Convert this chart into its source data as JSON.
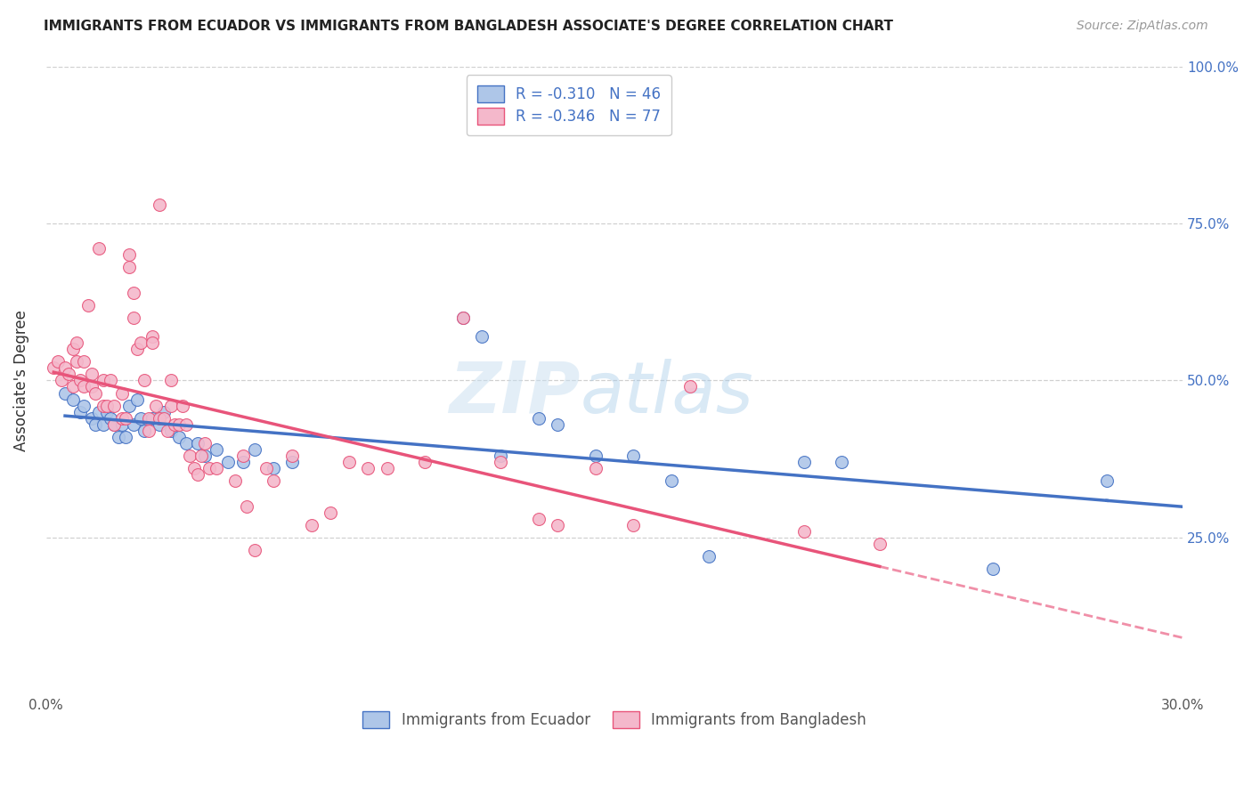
{
  "title": "IMMIGRANTS FROM ECUADOR VS IMMIGRANTS FROM BANGLADESH ASSOCIATE'S DEGREE CORRELATION CHART",
  "source": "Source: ZipAtlas.com",
  "ylabel": "Associate's Degree",
  "legend_ecuador": "R = -0.310   N = 46",
  "legend_bangladesh": "R = -0.346   N = 77",
  "watermark_zip": "ZIP",
  "watermark_atlas": "atlas",
  "ecuador_color": "#aec6e8",
  "ecuador_line_color": "#4472c4",
  "ecuador_edge_color": "#4472c4",
  "bangladesh_color": "#f4b8cb",
  "bangladesh_line_color": "#e8547a",
  "bangladesh_edge_color": "#e8547a",
  "ecuador_scatter": [
    [
      0.005,
      0.48
    ],
    [
      0.007,
      0.47
    ],
    [
      0.009,
      0.45
    ],
    [
      0.01,
      0.46
    ],
    [
      0.012,
      0.44
    ],
    [
      0.013,
      0.43
    ],
    [
      0.014,
      0.45
    ],
    [
      0.015,
      0.43
    ],
    [
      0.016,
      0.45
    ],
    [
      0.017,
      0.44
    ],
    [
      0.018,
      0.43
    ],
    [
      0.019,
      0.41
    ],
    [
      0.02,
      0.43
    ],
    [
      0.021,
      0.41
    ],
    [
      0.022,
      0.46
    ],
    [
      0.023,
      0.43
    ],
    [
      0.024,
      0.47
    ],
    [
      0.025,
      0.44
    ],
    [
      0.026,
      0.42
    ],
    [
      0.028,
      0.44
    ],
    [
      0.03,
      0.43
    ],
    [
      0.031,
      0.45
    ],
    [
      0.033,
      0.42
    ],
    [
      0.035,
      0.41
    ],
    [
      0.037,
      0.4
    ],
    [
      0.04,
      0.4
    ],
    [
      0.042,
      0.38
    ],
    [
      0.045,
      0.39
    ],
    [
      0.048,
      0.37
    ],
    [
      0.052,
      0.37
    ],
    [
      0.055,
      0.39
    ],
    [
      0.06,
      0.36
    ],
    [
      0.065,
      0.37
    ],
    [
      0.11,
      0.6
    ],
    [
      0.115,
      0.57
    ],
    [
      0.12,
      0.38
    ],
    [
      0.13,
      0.44
    ],
    [
      0.135,
      0.43
    ],
    [
      0.145,
      0.38
    ],
    [
      0.155,
      0.38
    ],
    [
      0.165,
      0.34
    ],
    [
      0.175,
      0.22
    ],
    [
      0.2,
      0.37
    ],
    [
      0.21,
      0.37
    ],
    [
      0.25,
      0.2
    ],
    [
      0.28,
      0.34
    ]
  ],
  "bangladesh_scatter": [
    [
      0.002,
      0.52
    ],
    [
      0.003,
      0.53
    ],
    [
      0.004,
      0.5
    ],
    [
      0.005,
      0.52
    ],
    [
      0.006,
      0.51
    ],
    [
      0.007,
      0.55
    ],
    [
      0.007,
      0.49
    ],
    [
      0.008,
      0.56
    ],
    [
      0.008,
      0.53
    ],
    [
      0.009,
      0.5
    ],
    [
      0.01,
      0.49
    ],
    [
      0.01,
      0.53
    ],
    [
      0.011,
      0.62
    ],
    [
      0.012,
      0.49
    ],
    [
      0.012,
      0.51
    ],
    [
      0.013,
      0.48
    ],
    [
      0.014,
      0.71
    ],
    [
      0.015,
      0.5
    ],
    [
      0.015,
      0.46
    ],
    [
      0.016,
      0.46
    ],
    [
      0.017,
      0.5
    ],
    [
      0.018,
      0.46
    ],
    [
      0.018,
      0.43
    ],
    [
      0.02,
      0.48
    ],
    [
      0.02,
      0.44
    ],
    [
      0.021,
      0.44
    ],
    [
      0.022,
      0.7
    ],
    [
      0.022,
      0.68
    ],
    [
      0.023,
      0.64
    ],
    [
      0.023,
      0.6
    ],
    [
      0.024,
      0.55
    ],
    [
      0.025,
      0.56
    ],
    [
      0.026,
      0.5
    ],
    [
      0.027,
      0.44
    ],
    [
      0.027,
      0.42
    ],
    [
      0.028,
      0.57
    ],
    [
      0.028,
      0.56
    ],
    [
      0.029,
      0.46
    ],
    [
      0.03,
      0.78
    ],
    [
      0.03,
      0.44
    ],
    [
      0.031,
      0.44
    ],
    [
      0.032,
      0.42
    ],
    [
      0.033,
      0.5
    ],
    [
      0.033,
      0.46
    ],
    [
      0.034,
      0.43
    ],
    [
      0.035,
      0.43
    ],
    [
      0.036,
      0.46
    ],
    [
      0.037,
      0.43
    ],
    [
      0.038,
      0.38
    ],
    [
      0.039,
      0.36
    ],
    [
      0.04,
      0.35
    ],
    [
      0.041,
      0.38
    ],
    [
      0.042,
      0.4
    ],
    [
      0.043,
      0.36
    ],
    [
      0.045,
      0.36
    ],
    [
      0.05,
      0.34
    ],
    [
      0.052,
      0.38
    ],
    [
      0.053,
      0.3
    ],
    [
      0.055,
      0.23
    ],
    [
      0.058,
      0.36
    ],
    [
      0.06,
      0.34
    ],
    [
      0.065,
      0.38
    ],
    [
      0.07,
      0.27
    ],
    [
      0.075,
      0.29
    ],
    [
      0.08,
      0.37
    ],
    [
      0.085,
      0.36
    ],
    [
      0.09,
      0.36
    ],
    [
      0.1,
      0.37
    ],
    [
      0.11,
      0.6
    ],
    [
      0.12,
      0.37
    ],
    [
      0.13,
      0.28
    ],
    [
      0.135,
      0.27
    ],
    [
      0.145,
      0.36
    ],
    [
      0.155,
      0.27
    ],
    [
      0.17,
      0.49
    ],
    [
      0.2,
      0.26
    ],
    [
      0.22,
      0.24
    ]
  ],
  "xlim": [
    0.0,
    0.3
  ],
  "ylim": [
    0.0,
    1.0
  ],
  "yticks": [
    0.25,
    0.5,
    0.75,
    1.0
  ],
  "ytick_labels": [
    "25.0%",
    "50.0%",
    "75.0%",
    "100.0%"
  ],
  "xticks": [
    0.0,
    0.05,
    0.1,
    0.15,
    0.2,
    0.25,
    0.3
  ],
  "xtick_labels_show": [
    "0.0%",
    "",
    "",
    "",
    "",
    "",
    "30.0%"
  ],
  "grid_color": "#d0d0d0",
  "bg_color": "#ffffff"
}
